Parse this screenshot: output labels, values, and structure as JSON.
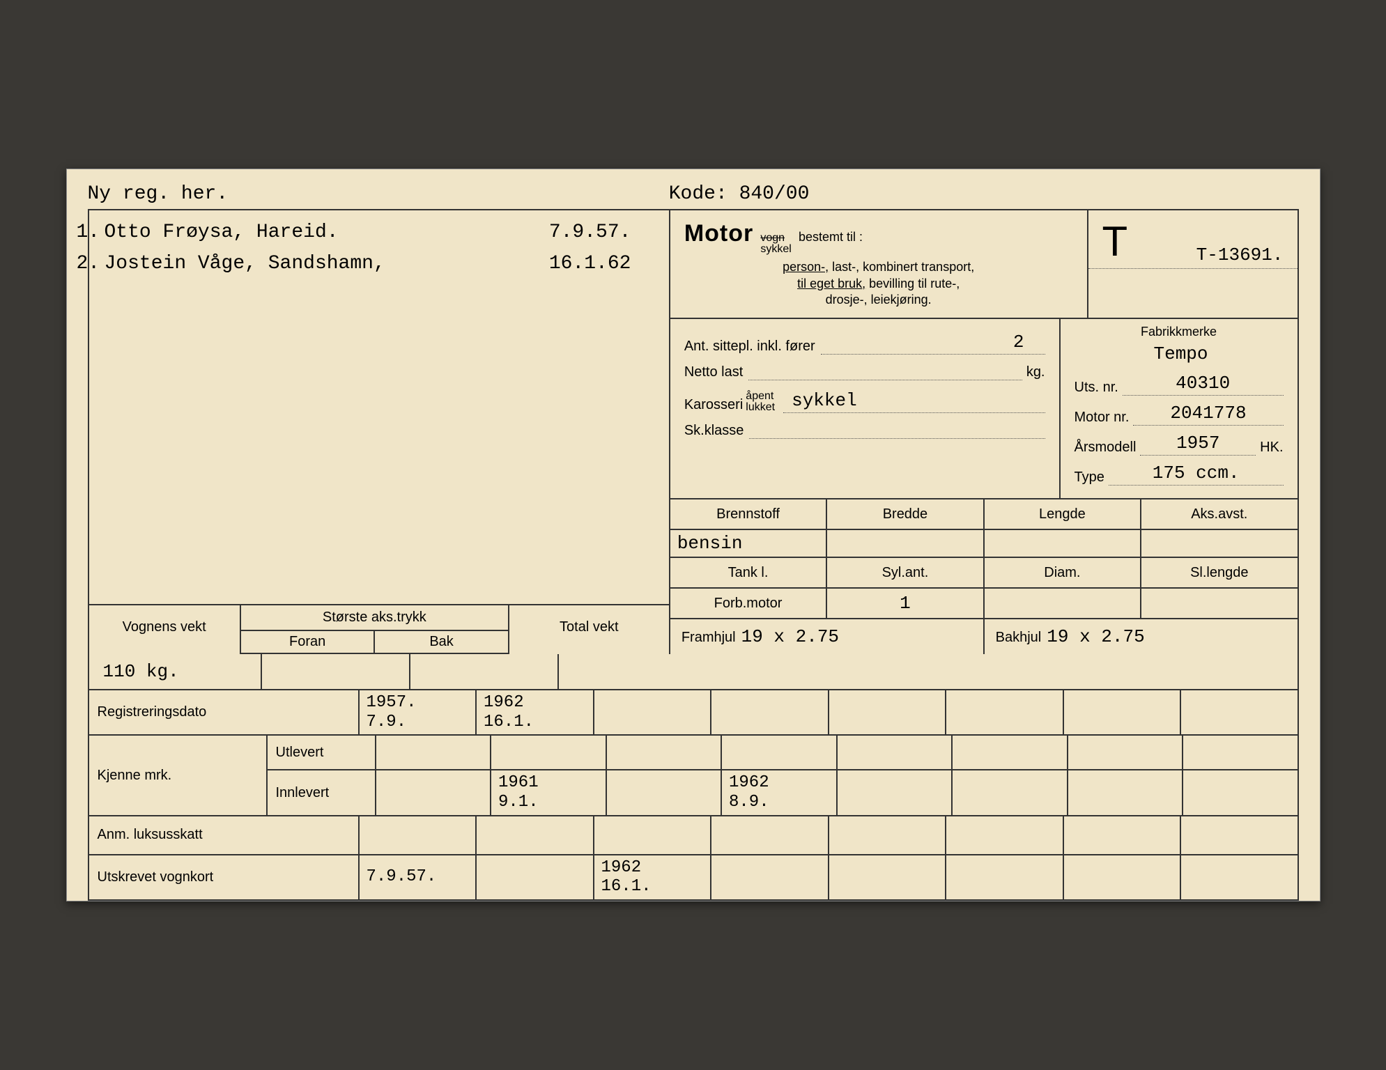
{
  "colors": {
    "card_bg": "#f0e5c8",
    "page_bg": "#3a3834",
    "line": "#333333",
    "dotted": "#555555"
  },
  "header": {
    "left": "Ny reg. her.",
    "kode_label": "Kode:",
    "kode_value": "840/00"
  },
  "owners": [
    {
      "num": "1.",
      "name": "Otto Frøysa, Hareid.",
      "date": "7.9.57."
    },
    {
      "num": "2.",
      "name": "Jostein Våge, Sandshamn,",
      "date": "16.1.62"
    }
  ],
  "motor": {
    "big": "Motor",
    "strike": "vogn",
    "sykkel": "sykkel",
    "bestemt": "bestemt til :",
    "line1a": "person-,",
    "line1b": " last-, kombinert transport,",
    "line2a": "til eget bruk,",
    "line2b": " bevilling til rute-,",
    "line3": "drosje-, leiekjøring."
  },
  "t_letter": "T",
  "t_number": "T-13691.",
  "fabrikk_label": "Fabrikkmerke",
  "fabrikk_value": "Tempo",
  "spec_left": {
    "sittepl_label": "Ant. sittepl. inkl. fører",
    "sittepl_value": "2",
    "netto_label": "Netto last",
    "netto_value": "",
    "netto_unit": "kg.",
    "karosseri_label": "Karosseri",
    "karosseri_apent": "åpent",
    "karosseri_lukket": "lukket",
    "karosseri_value": "sykkel",
    "skklasse_label": "Sk.klasse",
    "skklasse_value": ""
  },
  "spec_right": {
    "uts_label": "Uts. nr.",
    "uts_value": "40310",
    "motornr_label": "Motor nr.",
    "motornr_value": "2041778",
    "arsmodell_label": "Årsmodell",
    "arsmodell_value": "1957",
    "arsmodell_unit": "HK.",
    "type_label": "Type",
    "type_value": "175 ccm."
  },
  "meas1": {
    "h1": "Brennstoff",
    "v1": "bensin",
    "h2": "Bredde",
    "v2": "",
    "h3": "Lengde",
    "v3": "",
    "h4": "Aks.avst.",
    "v4": ""
  },
  "meas2": {
    "h1": "Tank          l.",
    "v1": "",
    "h2": "Syl.ant.",
    "v2": "",
    "h3": "Diam.",
    "v3": "",
    "h4": "Sl.lengde",
    "v4": ""
  },
  "meas3": {
    "h1": "Forb.motor",
    "v1": "1"
  },
  "hjul": {
    "fram_label": "Framhjul",
    "fram_value": "19 x 2.75",
    "bak_label": "Bakhjul",
    "bak_value": "19 x 2.75"
  },
  "weight": {
    "h1": "Vognens vekt",
    "h2": "Største aks.trykk",
    "h2a": "Foran",
    "h2b": "Bak",
    "h3": "Total vekt",
    "v1": "110 kg.",
    "v2a": "",
    "v2b": "",
    "v3": ""
  },
  "bottom": {
    "reg_label": "Registreringsdato",
    "reg": [
      "1957.\n7.9.",
      "1962\n16.1.",
      "",
      "",
      "",
      "",
      "",
      ""
    ],
    "kjenne_label": "Kjenne mrk.",
    "utlevert_label": "Utlevert",
    "utlevert": [
      "",
      "",
      "",
      "",
      "",
      "",
      "",
      ""
    ],
    "innlevert_label": "Innlevert",
    "innlevert": [
      "",
      "1961\n9.1.",
      "",
      "1962\n8.9.",
      "",
      "",
      "",
      ""
    ],
    "anm_label": "Anm. luksusskatt",
    "anm": [
      "",
      "",
      "",
      "",
      "",
      "",
      "",
      ""
    ],
    "vognkort_label": "Utskrevet vognkort",
    "vognkort": [
      "7.9.57.",
      "",
      "1962\n16.1.",
      "",
      "",
      "",
      "",
      ""
    ]
  }
}
